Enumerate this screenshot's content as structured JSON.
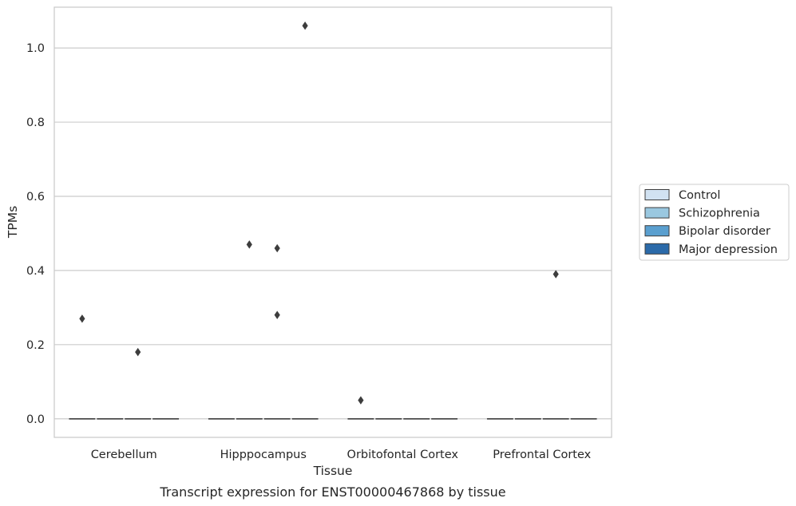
{
  "chart_data": {
    "type": "box",
    "xlabel": "Tissue",
    "ylabel": "TPMs",
    "caption": "Transcript expression for ENST00000467868 by tissue",
    "categories": [
      "Cerebellum",
      "Hipppocampus",
      "Orbitofontal Cortex",
      "Prefrontal Cortex"
    ],
    "ylim": [
      -0.05,
      1.11
    ],
    "yticks": [
      0.0,
      0.2,
      0.4,
      0.6,
      0.8,
      1.0
    ],
    "ytick_labels": [
      "0.0",
      "0.2",
      "0.4",
      "0.6",
      "0.8",
      "1.0"
    ],
    "grid": true,
    "legend_position": "right",
    "series": [
      {
        "name": "Control",
        "color": "#d1e2f2",
        "median": 0.0,
        "outliers": [
          [
            0,
            0.27
          ],
          [
            2,
            0.05
          ]
        ]
      },
      {
        "name": "Schizophrenia",
        "color": "#9ac8e0",
        "median": 0.0,
        "outliers": [
          [
            1,
            0.47
          ]
        ]
      },
      {
        "name": "Bipolar disorder",
        "color": "#5a9fcf",
        "median": 0.0,
        "outliers": [
          [
            0,
            0.18
          ],
          [
            1,
            0.46
          ],
          [
            1,
            0.28
          ],
          [
            3,
            0.39
          ]
        ]
      },
      {
        "name": "Major depression",
        "color": "#2b6aa9",
        "median": 0.0,
        "outliers": [
          [
            1,
            1.06
          ]
        ]
      }
    ]
  }
}
